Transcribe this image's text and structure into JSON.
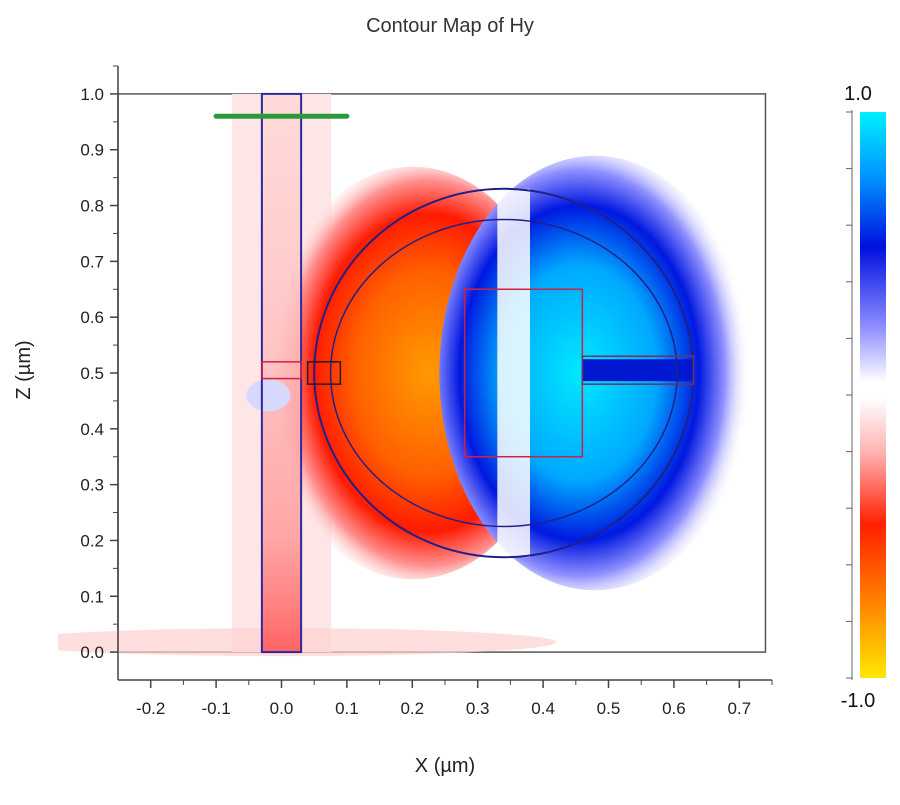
{
  "chart_data": {
    "type": "heatmap",
    "title": "Contour Map of Hy",
    "xlabel": "X (µm)",
    "ylabel": "Z (µm)",
    "xlim": [
      -0.25,
      0.75
    ],
    "ylim": [
      -0.05,
      1.05
    ],
    "x_ticks": [
      -0.2,
      -0.1,
      0.0,
      0.1,
      0.2,
      0.3,
      0.4,
      0.5,
      0.6,
      0.7
    ],
    "y_ticks": [
      0.0,
      0.1,
      0.2,
      0.3,
      0.4,
      0.5,
      0.6,
      0.7,
      0.8,
      0.9,
      1.0
    ],
    "x_tick_labels": [
      "-0.2",
      "-0.1",
      "0.0",
      "0.1",
      "0.2",
      "0.3",
      "0.4",
      "0.5",
      "0.6",
      "0.7"
    ],
    "y_tick_labels": [
      "0.0",
      "0.1",
      "0.2",
      "0.3",
      "0.4",
      "0.5",
      "0.6",
      "0.7",
      "0.8",
      "0.9",
      "1.0"
    ],
    "colorbar": {
      "min": -1.0,
      "max": 1.0,
      "max_label": "1.0",
      "min_label": "-1.0",
      "colors": [
        "#ffe000",
        "#ff9a00",
        "#ff2000",
        "#ffc8c8",
        "#ffffff",
        "#c8c8ff",
        "#0018e0",
        "#00e8ff"
      ]
    },
    "simulation_region": {
      "x": [
        -0.25,
        0.74
      ],
      "z": [
        0.0,
        1.0
      ]
    },
    "waveguide": {
      "x": [
        -0.03,
        0.03
      ],
      "z": [
        0.0,
        1.0
      ]
    },
    "source_line": {
      "x": [
        -0.1,
        0.1
      ],
      "z": 0.96
    },
    "ring_outer": {
      "center": [
        0.34,
        0.5
      ],
      "rx": 0.29,
      "rz": 0.33
    },
    "ring_inner": {
      "center": [
        0.34,
        0.5
      ],
      "rx": 0.265,
      "rz": 0.275
    },
    "center_box": {
      "x": [
        0.28,
        0.46
      ],
      "z": [
        0.35,
        0.65
      ]
    },
    "arm_box": {
      "x": [
        0.46,
        0.63
      ],
      "z": [
        0.48,
        0.53
      ]
    },
    "coupler_box": {
      "x": [
        0.04,
        0.09
      ],
      "z": [
        0.48,
        0.52
      ]
    },
    "gap_box": {
      "x": [
        -0.03,
        0.03
      ],
      "z": [
        0.49,
        0.52
      ]
    }
  }
}
